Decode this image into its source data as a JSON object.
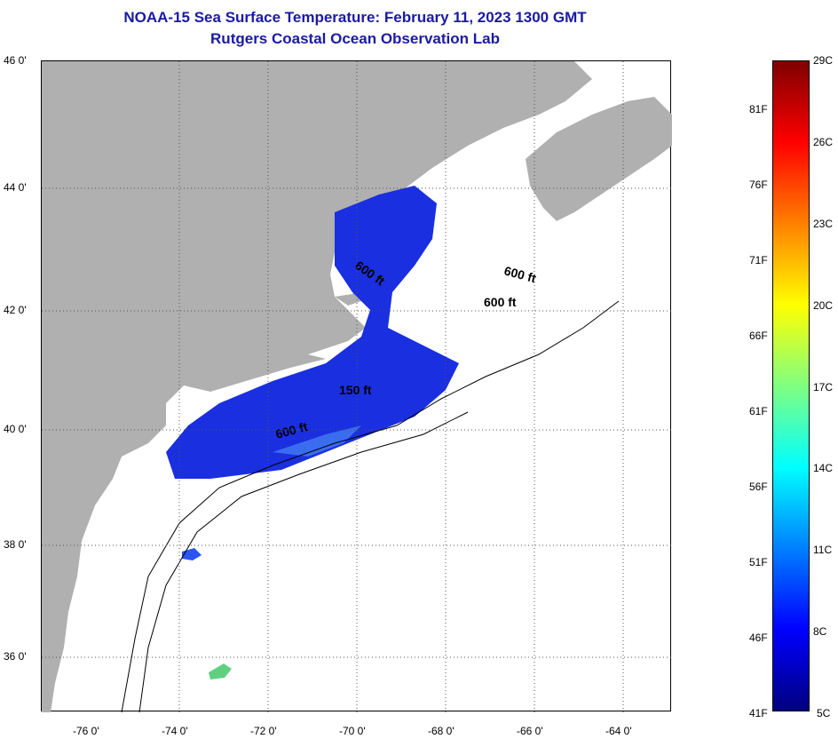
{
  "title": "NOAA-15 Sea Surface Temperature:  February 11, 2023 1300 GMT",
  "subtitle": "Rutgers Coastal Ocean Observation Lab",
  "lat_labels": [
    "46 0'",
    "44 0'",
    "42 0'",
    "40 0'",
    "38 0'",
    "36 0'"
  ],
  "lon_labels": [
    "-76 0'",
    "-74 0'",
    "-72 0'",
    "-70 0'",
    "-68 0'",
    "-66 0'",
    "-64 0'"
  ],
  "contour_labels": [
    "600 ft",
    "600 ft",
    "600 ft",
    "150 ft",
    "600 ft"
  ],
  "colorbar": {
    "f_labels": [
      "81F",
      "76F",
      "71F",
      "66F",
      "61F",
      "56F",
      "51F",
      "46F",
      "41F"
    ],
    "c_labels": [
      "29C",
      "26C",
      "23C",
      "20C",
      "17C",
      "14C",
      "11C",
      "8C",
      "5C"
    ],
    "colors": [
      "#00007f",
      "#0000ff",
      "#0080ff",
      "#00ffff",
      "#80ff80",
      "#ffff00",
      "#ff8000",
      "#ff0000",
      "#7f0000"
    ]
  },
  "colors": {
    "land": "#b0b0b0",
    "water_sst": "#1a2fe0",
    "title": "#1a1aa6"
  }
}
